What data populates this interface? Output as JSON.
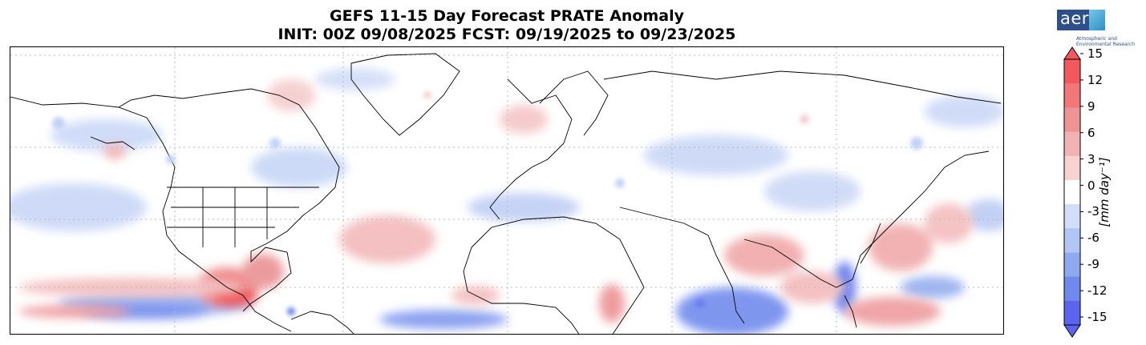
{
  "title": {
    "line1": "GEFS 11-15 Day Forecast PRATE Anomaly",
    "line2": "INIT: 00Z 09/08/2025     FCST: 09/19/2025 to 09/23/2025"
  },
  "logo": {
    "text": "aer",
    "subtitle_line1": "Atmospheric and",
    "subtitle_line2": "Environmental Research"
  },
  "colorbar": {
    "label": "[mm day⁻¹]",
    "ticks": [
      "15",
      "12",
      "9",
      "6",
      "3",
      "0",
      "-3",
      "-6",
      "-9",
      "-12",
      "-15"
    ],
    "colors": [
      "#f5585c",
      "#f37679",
      "#f09395",
      "#f2b1b2",
      "#f8d1d1",
      "#ffffff",
      "#d2ddf8",
      "#b0c6f4",
      "#8fa9f0",
      "#6f89ee",
      "#5a64ef"
    ]
  },
  "map": {
    "projection": "equirectangular",
    "graticule": "dotted grid",
    "colors": {
      "wet": "#e8848a",
      "dry": "#93a9ee",
      "coast": "#000000"
    }
  }
}
